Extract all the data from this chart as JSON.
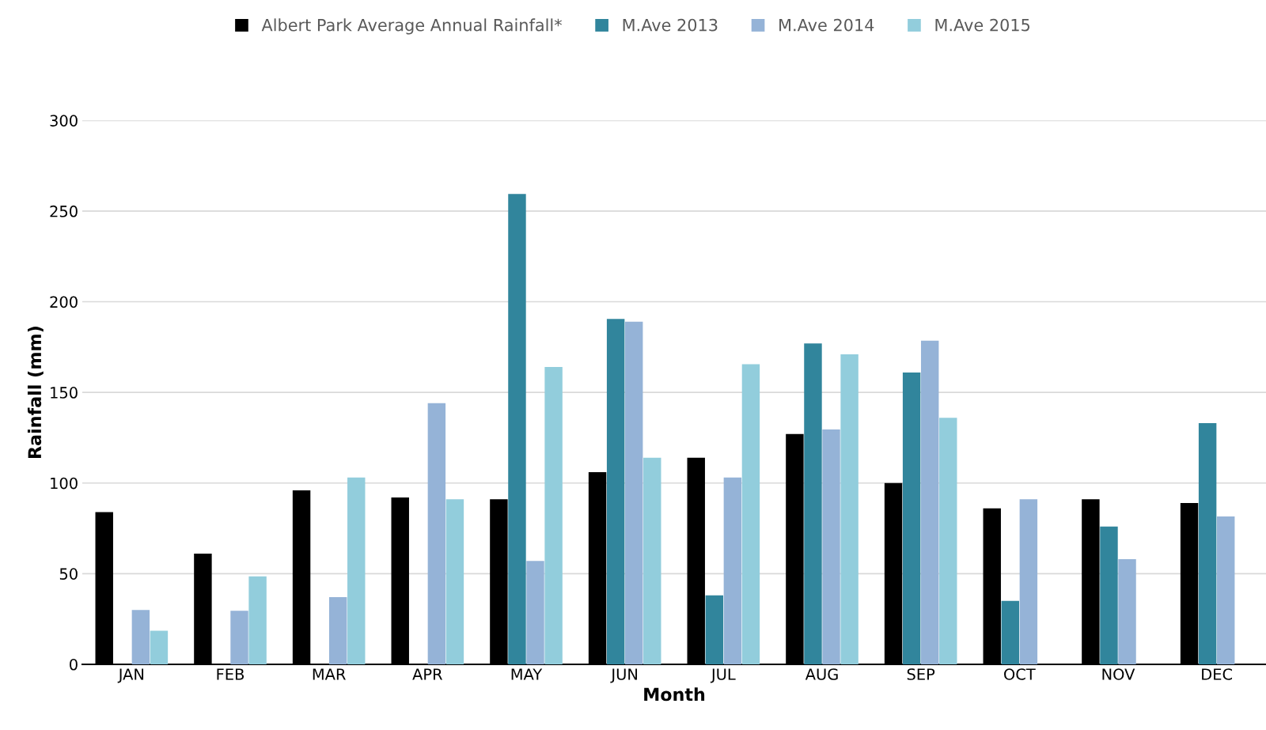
{
  "chart_data": {
    "type": "bar",
    "xlabel": "Month",
    "ylabel": "Rainfall (mm)",
    "categories": [
      "JAN",
      "FEB",
      "MAR",
      "APR",
      "MAY",
      "JUN",
      "JUL",
      "AUG",
      "SEP",
      "OCT",
      "NOV",
      "DEC"
    ],
    "series": [
      {
        "name": "Albert Park Average Annual Rainfall*",
        "color": "#000000",
        "values": [
          84,
          61,
          96,
          92,
          91,
          106,
          114,
          127,
          100,
          86,
          91,
          89
        ]
      },
      {
        "name": "M.Ave 2013",
        "color": "#31859c",
        "values": [
          null,
          null,
          null,
          null,
          259.5,
          190.5,
          38,
          177,
          161,
          35,
          76,
          133
        ]
      },
      {
        "name": "M.Ave 2014",
        "color": "#95b3d7",
        "values": [
          30,
          29.5,
          37,
          144,
          57,
          189,
          103,
          129.5,
          178.5,
          91,
          58,
          81.5
        ]
      },
      {
        "name": "M.Ave 2015",
        "color": "#92cddc",
        "values": [
          18.5,
          48.5,
          103,
          91,
          164,
          114,
          165.5,
          171,
          136,
          null,
          null,
          null
        ]
      }
    ],
    "ylim": [
      0,
      300
    ],
    "yticks": [
      0,
      50,
      100,
      150,
      200,
      250,
      300
    ],
    "grid": "y",
    "legend": "top"
  }
}
